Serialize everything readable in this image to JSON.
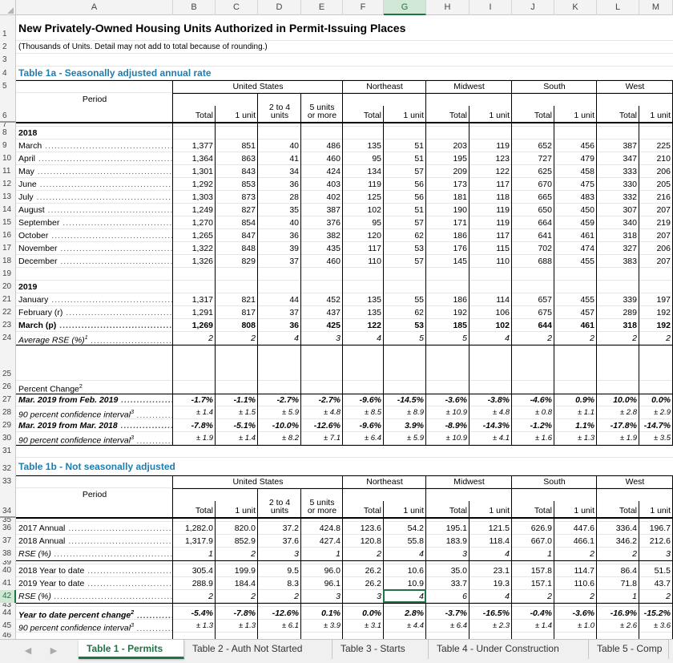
{
  "columns": [
    "A",
    "B",
    "C",
    "D",
    "E",
    "F",
    "G",
    "H",
    "I",
    "J",
    "K",
    "L",
    "M"
  ],
  "selected_column": "G",
  "selected_row": "42",
  "title": "New Privately-Owned Housing Units Authorized in Permit-Issuing Places",
  "subtitle": "(Thousands of Units.  Detail may not add to total because of rounding.)",
  "table1a": {
    "title": "Table 1a - Seasonally adjusted annual rate",
    "period_label": "Period",
    "group_headers": {
      "us": "United States",
      "ne": "Northeast",
      "mw": "Midwest",
      "so": "South",
      "we": "West"
    },
    "sub_headers": {
      "two_to_four_top": "2 to 4",
      "two_to_four_bottom": "units",
      "five_top": "5 units",
      "five_bottom": "or more"
    },
    "col_headers": [
      "Total",
      "1 unit",
      "",
      "",
      "Total",
      "1 unit",
      "Total",
      "1 unit",
      "Total",
      "1 unit",
      "Total",
      "1 unit"
    ],
    "year_2018": "2018",
    "year_2019": "2019",
    "rows_2018": [
      {
        "label": "March",
        "values": [
          "1,377",
          "851",
          "40",
          "486",
          "135",
          "51",
          "203",
          "119",
          "652",
          "456",
          "387",
          "225"
        ]
      },
      {
        "label": "April",
        "values": [
          "1,364",
          "863",
          "41",
          "460",
          "95",
          "51",
          "195",
          "123",
          "727",
          "479",
          "347",
          "210"
        ]
      },
      {
        "label": "May",
        "values": [
          "1,301",
          "843",
          "34",
          "424",
          "134",
          "57",
          "209",
          "122",
          "625",
          "458",
          "333",
          "206"
        ]
      },
      {
        "label": "June",
        "values": [
          "1,292",
          "853",
          "36",
          "403",
          "119",
          "56",
          "173",
          "117",
          "670",
          "475",
          "330",
          "205"
        ]
      },
      {
        "label": "July",
        "values": [
          "1,303",
          "873",
          "28",
          "402",
          "125",
          "56",
          "181",
          "118",
          "665",
          "483",
          "332",
          "216"
        ]
      },
      {
        "label": "August",
        "values": [
          "1,249",
          "827",
          "35",
          "387",
          "102",
          "51",
          "190",
          "119",
          "650",
          "450",
          "307",
          "207"
        ]
      },
      {
        "label": "September",
        "values": [
          "1,270",
          "854",
          "40",
          "376",
          "95",
          "57",
          "171",
          "119",
          "664",
          "459",
          "340",
          "219"
        ]
      },
      {
        "label": "October",
        "values": [
          "1,265",
          "847",
          "36",
          "382",
          "120",
          "62",
          "186",
          "117",
          "641",
          "461",
          "318",
          "207"
        ]
      },
      {
        "label": "November",
        "values": [
          "1,322",
          "848",
          "39",
          "435",
          "117",
          "53",
          "176",
          "115",
          "702",
          "474",
          "327",
          "206"
        ]
      },
      {
        "label": "December",
        "values": [
          "1,326",
          "829",
          "37",
          "460",
          "110",
          "57",
          "145",
          "110",
          "688",
          "455",
          "383",
          "207"
        ]
      }
    ],
    "rows_2019": [
      {
        "label": "January",
        "values": [
          "1,317",
          "821",
          "44",
          "452",
          "135",
          "55",
          "186",
          "114",
          "657",
          "455",
          "339",
          "197"
        ],
        "style": ""
      },
      {
        "label": "February (r)",
        "values": [
          "1,291",
          "817",
          "37",
          "437",
          "135",
          "62",
          "192",
          "106",
          "675",
          "457",
          "289",
          "192"
        ],
        "style": ""
      },
      {
        "label": "March (p)",
        "values": [
          "1,269",
          "808",
          "36",
          "425",
          "122",
          "53",
          "185",
          "102",
          "644",
          "461",
          "318",
          "192"
        ],
        "style": "b"
      },
      {
        "label": "Average RSE (%)",
        "sup": "1",
        "values": [
          "2",
          "2",
          "4",
          "3",
          "4",
          "5",
          "5",
          "4",
          "2",
          "2",
          "2",
          "2"
        ],
        "style": "i"
      }
    ],
    "pct_change_label": "Percent Change",
    "pct_change_sup": "2",
    "pct_rows": [
      {
        "label": "Mar. 2019 from Feb. 2019",
        "values": [
          "-1.7%",
          "-1.1%",
          "-2.7%",
          "-2.7%",
          "-9.6%",
          "-14.5%",
          "-3.6%",
          "-3.8%",
          "-4.6%",
          "0.9%",
          "10.0%",
          "0.0%"
        ],
        "style": "bi"
      },
      {
        "label": "90 percent confidence interval",
        "sup": "3",
        "values": [
          "± 1.4",
          "± 1.5",
          "± 5.9",
          "± 4.8",
          "± 8.5",
          "± 8.9",
          "± 10.9",
          "± 4.8",
          "± 0.8",
          "± 1.1",
          "± 2.8",
          "± 2.9"
        ],
        "style": "i"
      },
      {
        "label": "Mar. 2019 from Mar. 2018",
        "values": [
          "-7.8%",
          "-5.1%",
          "-10.0%",
          "-12.6%",
          "-9.6%",
          "3.9%",
          "-8.9%",
          "-14.3%",
          "-1.2%",
          "1.1%",
          "-17.8%",
          "-14.7%"
        ],
        "style": "bi"
      },
      {
        "label": "90 percent confidence interval",
        "sup": "3",
        "values": [
          "± 1.9",
          "± 1.4",
          "± 8.2",
          "± 7.1",
          "± 6.4",
          "± 5.9",
          "± 10.9",
          "± 4.1",
          "± 1.6",
          "± 1.3",
          "± 1.9",
          "± 3.5"
        ],
        "style": "i"
      }
    ]
  },
  "table1b": {
    "title": "Table 1b - Not seasonally adjusted",
    "rows_a": [
      {
        "label": "2017 Annual",
        "values": [
          "1,282.0",
          "820.0",
          "37.2",
          "424.8",
          "123.6",
          "54.2",
          "195.1",
          "121.5",
          "626.9",
          "447.6",
          "336.4",
          "196.7"
        ],
        "style": ""
      },
      {
        "label": "2018 Annual",
        "values": [
          "1,317.9",
          "852.9",
          "37.6",
          "427.4",
          "120.8",
          "55.8",
          "183.9",
          "118.4",
          "667.0",
          "466.1",
          "346.2",
          "212.6"
        ],
        "style": ""
      },
      {
        "label": "RSE (%)",
        "values": [
          "1",
          "2",
          "3",
          "1",
          "2",
          "4",
          "3",
          "4",
          "1",
          "2",
          "2",
          "3"
        ],
        "style": "i"
      }
    ],
    "rows_b": [
      {
        "label": "2018 Year to date",
        "values": [
          "305.4",
          "199.9",
          "9.5",
          "96.0",
          "26.2",
          "10.6",
          "35.0",
          "23.1",
          "157.8",
          "114.7",
          "86.4",
          "51.5"
        ],
        "style": ""
      },
      {
        "label": "2019 Year to date",
        "values": [
          "288.9",
          "184.4",
          "8.3",
          "96.1",
          "26.2",
          "10.9",
          "33.7",
          "19.3",
          "157.1",
          "110.6",
          "71.8",
          "43.7"
        ],
        "style": ""
      },
      {
        "label": "RSE (%)",
        "values": [
          "2",
          "2",
          "2",
          "3",
          "3",
          "4",
          "6",
          "4",
          "2",
          "2",
          "1",
          "2"
        ],
        "style": "i"
      }
    ],
    "rows_c": [
      {
        "label": "Year to date percent change",
        "sup": "2",
        "values": [
          "-5.4%",
          "-7.8%",
          "-12.6%",
          "0.1%",
          "0.0%",
          "2.8%",
          "-3.7%",
          "-16.5%",
          "-0.4%",
          "-3.6%",
          "-16.9%",
          "-15.2%"
        ],
        "style": "bi"
      },
      {
        "label": "90 percent confidence interval",
        "sup": "3",
        "values": [
          "± 1.3",
          "± 1.3",
          "± 6.1",
          "± 3.9",
          "± 3.1",
          "± 4.4",
          "± 6.4",
          "± 2.3",
          "± 1.4",
          "± 1.0",
          "± 2.6",
          "± 3.6"
        ],
        "style": "i"
      }
    ]
  },
  "tabs": [
    "Table 1 - Permits",
    "Table 2 - Auth Not Started",
    "Table 3 - Starts",
    "Table 4 - Under Construction",
    "Table 5 - Comp"
  ],
  "active_tab": 0,
  "nav": {
    "prev": "◀",
    "next": "▶"
  },
  "accent_color": "#217346",
  "title_color": "#1f7db0"
}
